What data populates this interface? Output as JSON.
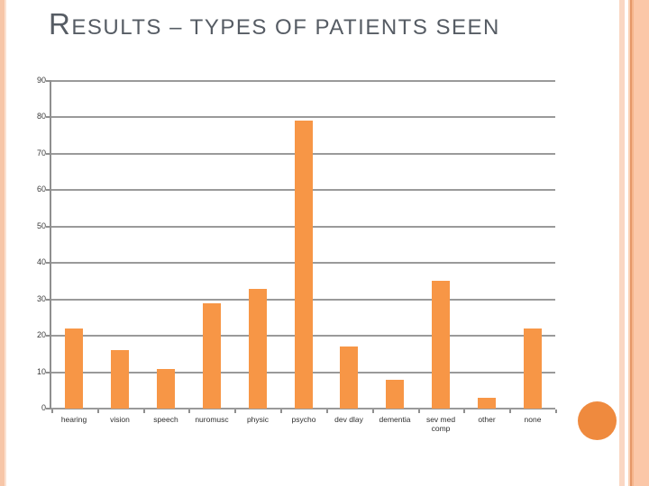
{
  "title": {
    "first": "R",
    "rest": "ESULTS – TYPES OF PATIENTS SEEN",
    "color": "#565C64"
  },
  "chart_data": {
    "type": "bar",
    "title": "",
    "xlabel": "",
    "ylabel": "",
    "categories": [
      "hearing",
      "vision",
      "speech",
      "nuromusc",
      "physic",
      "psycho",
      "dev dlay",
      "dementia",
      "sev med\ncomp",
      "other",
      "none"
    ],
    "values": [
      22,
      16,
      11,
      29,
      33,
      79,
      17,
      8,
      35,
      3,
      22
    ],
    "ylim": [
      0,
      90
    ],
    "yticks": [
      90,
      80,
      70,
      60,
      50,
      40,
      30,
      20,
      10,
      0
    ],
    "grid": true,
    "legend_position": "none",
    "bar_color": "#F79646",
    "gridline_color": "#9A9A9A",
    "axis_color": "#8F8F8F"
  },
  "decorations": {
    "circle_color": "#EF8A3E",
    "left_stripe_color": "#F7C6A8",
    "right_stripes": [
      {
        "x": 687,
        "w": 6,
        "color": "#FAD7C3"
      },
      {
        "x": 697,
        "w": 2,
        "color": "#FAD0B3"
      },
      {
        "x": 699,
        "w": 2,
        "color": "#E59768"
      },
      {
        "x": 701,
        "w": 2,
        "color": "#F5B58C"
      },
      {
        "x": 703,
        "w": 17,
        "color": "#FBC7A8"
      }
    ]
  }
}
